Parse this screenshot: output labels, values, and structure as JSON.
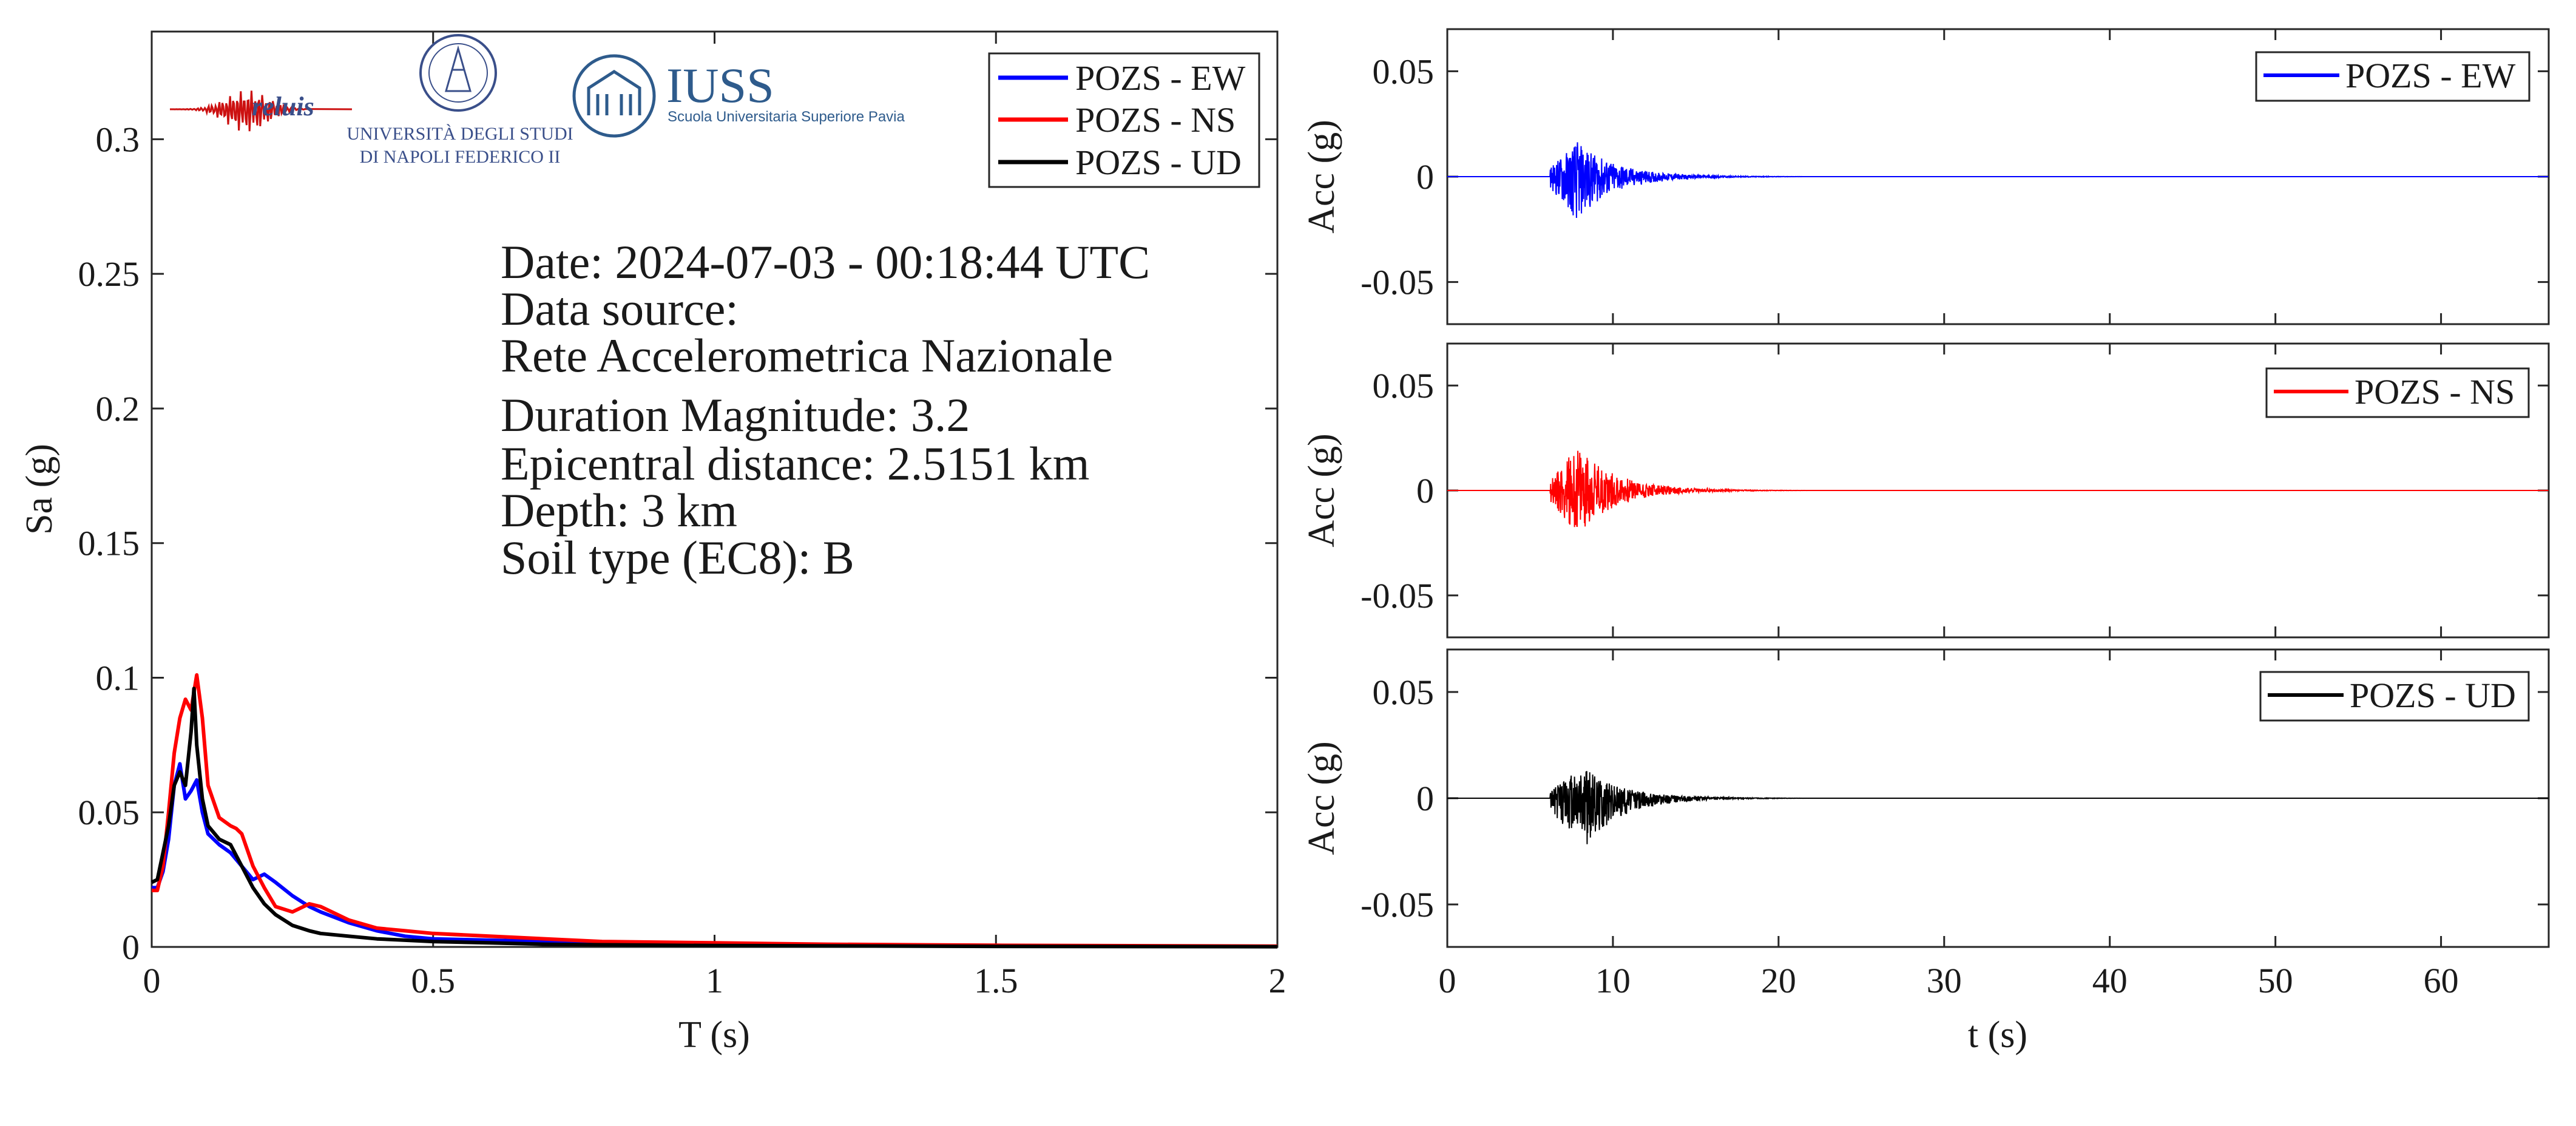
{
  "colors": {
    "EW": "#0000ff",
    "NS": "#ff0000",
    "UD": "#000000",
    "axis": "#262626",
    "iuss": "#2e5b8c",
    "reluis": "#cc1111"
  },
  "logos": {
    "reluis": "reluis",
    "unina_line1": "UNIVERSITÀ DEGLI STUDI",
    "unina_line2": "DI NAPOLI FEDERICO II",
    "iuss": "IUSS",
    "iuss_sub": "Scuola Universitaria Superiore Pavia"
  },
  "info": {
    "date": "Date: 2024-07-03 - 00:18:44 UTC",
    "source_label": "Data source:",
    "source_name": "Rete Accelerometrica Nazionale",
    "magnitude": "Duration Magnitude: 3.2",
    "distance": "Epicentral distance: 2.5151 km",
    "depth": "Depth: 3 km",
    "soil": "Soil type (EC8): B"
  },
  "chart_data": [
    {
      "type": "line",
      "xlabel": "T (s)",
      "ylabel": "Sa (g)",
      "xlim": [
        0,
        2
      ],
      "ylim": [
        0,
        0.34
      ],
      "xticks": [
        0,
        0.5,
        1,
        1.5,
        2
      ],
      "xtick_labels": [
        "0",
        "0.5",
        "1",
        "1.5",
        "2"
      ],
      "yticks": [
        0,
        0.05,
        0.1,
        0.15,
        0.2,
        0.25,
        0.3
      ],
      "ytick_labels": [
        "0",
        "0.05",
        "0.1",
        "0.15",
        "0.2",
        "0.25",
        "0.3"
      ],
      "legend_position": "top-right",
      "series": [
        {
          "name": "POZS - EW",
          "color": "#0000ff",
          "x": [
            0,
            0.01,
            0.02,
            0.03,
            0.04,
            0.05,
            0.06,
            0.07,
            0.08,
            0.09,
            0.1,
            0.12,
            0.14,
            0.16,
            0.18,
            0.2,
            0.22,
            0.25,
            0.28,
            0.3,
            0.35,
            0.4,
            0.45,
            0.5,
            0.6,
            0.7,
            0.8,
            1.0,
            1.2,
            1.5,
            2.0
          ],
          "y": [
            0.022,
            0.022,
            0.028,
            0.04,
            0.06,
            0.068,
            0.055,
            0.058,
            0.062,
            0.05,
            0.042,
            0.038,
            0.035,
            0.03,
            0.025,
            0.027,
            0.024,
            0.019,
            0.015,
            0.013,
            0.009,
            0.006,
            0.004,
            0.003,
            0.0025,
            0.002,
            0.0015,
            0.001,
            0.0007,
            0.0004,
            0.0002
          ]
        },
        {
          "name": "POZS - NS",
          "color": "#ff0000",
          "x": [
            0,
            0.01,
            0.02,
            0.03,
            0.04,
            0.05,
            0.06,
            0.07,
            0.08,
            0.09,
            0.1,
            0.12,
            0.14,
            0.15,
            0.16,
            0.18,
            0.2,
            0.22,
            0.25,
            0.28,
            0.3,
            0.35,
            0.4,
            0.45,
            0.5,
            0.6,
            0.7,
            0.8,
            1.0,
            1.2,
            1.5,
            2.0
          ],
          "y": [
            0.021,
            0.021,
            0.03,
            0.05,
            0.072,
            0.085,
            0.092,
            0.088,
            0.101,
            0.085,
            0.06,
            0.048,
            0.045,
            0.044,
            0.042,
            0.03,
            0.022,
            0.015,
            0.013,
            0.016,
            0.015,
            0.01,
            0.007,
            0.006,
            0.005,
            0.004,
            0.003,
            0.002,
            0.0015,
            0.001,
            0.0006,
            0.0003
          ]
        },
        {
          "name": "POZS - UD",
          "color": "#000000",
          "x": [
            0,
            0.01,
            0.02,
            0.03,
            0.04,
            0.05,
            0.06,
            0.07,
            0.075,
            0.08,
            0.09,
            0.1,
            0.12,
            0.14,
            0.16,
            0.18,
            0.2,
            0.22,
            0.25,
            0.28,
            0.3,
            0.35,
            0.4,
            0.45,
            0.5,
            0.6,
            0.7,
            0.8,
            1.0,
            1.5,
            2.0
          ],
          "y": [
            0.024,
            0.025,
            0.035,
            0.045,
            0.06,
            0.065,
            0.06,
            0.08,
            0.096,
            0.075,
            0.055,
            0.045,
            0.04,
            0.038,
            0.03,
            0.022,
            0.016,
            0.012,
            0.008,
            0.006,
            0.005,
            0.004,
            0.003,
            0.0025,
            0.002,
            0.0015,
            0.001,
            0.0008,
            0.0005,
            0.0002,
            0.0001
          ]
        }
      ]
    },
    {
      "type": "line",
      "ylabel": "Acc (g)",
      "xlim": [
        0,
        66.5
      ],
      "ylim": [
        -0.07,
        0.07
      ],
      "yticks": [
        -0.05,
        0,
        0.05
      ],
      "ytick_labels": [
        "-0.05",
        "0",
        "0.05"
      ],
      "legend_position": "top-right",
      "series": [
        {
          "name": "POZS - EW",
          "color": "#0000ff",
          "onset_s": 6.2,
          "peak_s": 7.8,
          "pga_pos": 0.017,
          "pga_neg": -0.021,
          "coda_end_s": 20,
          "seed": 11
        }
      ]
    },
    {
      "type": "line",
      "ylabel": "Acc (g)",
      "xlim": [
        0,
        66.5
      ],
      "ylim": [
        -0.07,
        0.07
      ],
      "yticks": [
        -0.05,
        0,
        0.05
      ],
      "ytick_labels": [
        "-0.05",
        "0",
        "0.05"
      ],
      "legend_position": "top-right",
      "series": [
        {
          "name": "POZS - NS",
          "color": "#ff0000",
          "onset_s": 6.2,
          "peak_s": 7.9,
          "pga_pos": 0.021,
          "pga_neg": -0.021,
          "coda_end_s": 20,
          "seed": 23
        }
      ]
    },
    {
      "type": "line",
      "xlabel": "t (s)",
      "ylabel": "Acc (g)",
      "xlim": [
        0,
        66.5
      ],
      "ylim": [
        -0.07,
        0.07
      ],
      "xticks": [
        0,
        10,
        20,
        30,
        40,
        50,
        60
      ],
      "xtick_labels": [
        "0",
        "10",
        "20",
        "30",
        "40",
        "50",
        "60"
      ],
      "yticks": [
        -0.05,
        0,
        0.05
      ],
      "ytick_labels": [
        "-0.05",
        "0",
        "0.05"
      ],
      "legend_position": "top-right",
      "series": [
        {
          "name": "POZS - UD",
          "color": "#000000",
          "onset_s": 6.2,
          "peak_s": 8.2,
          "pga_pos": 0.015,
          "pga_neg": -0.024,
          "coda_end_s": 20,
          "seed": 37
        }
      ]
    }
  ]
}
